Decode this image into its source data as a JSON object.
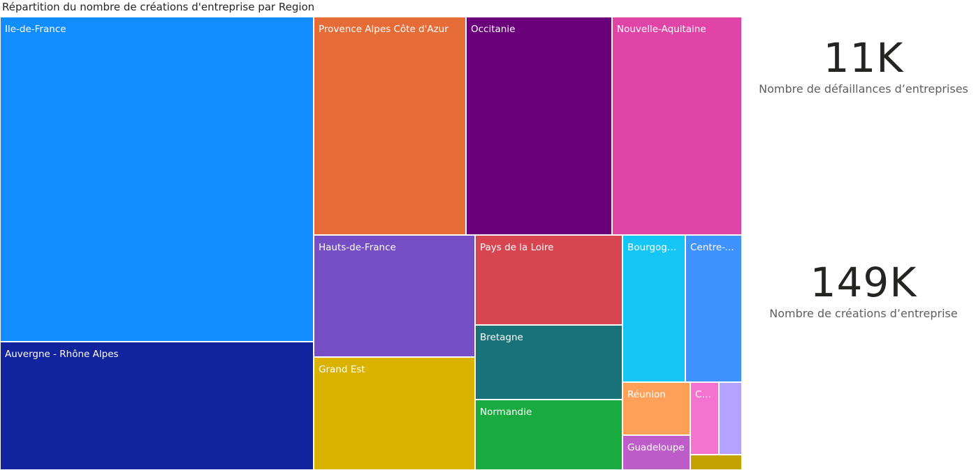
{
  "chart_data": {
    "type": "treemap",
    "title": "Répartition du nombre de créations d'entreprise par Region",
    "tiles": [
      {
        "label": "Ile-de-France",
        "color": "#118DFF"
      },
      {
        "label": "Auvergne - Rhône Alpes",
        "color": "#12239E"
      },
      {
        "label": "Provence Alpes Côte d'Azur",
        "color": "#E66C37"
      },
      {
        "label": "Occitanie",
        "color": "#6B007B"
      },
      {
        "label": "Nouvelle-Aquitaine",
        "color": "#E044A7"
      },
      {
        "label": "Hauts-de-France",
        "color": "#744EC2"
      },
      {
        "label": "Grand Est",
        "color": "#D9B300"
      },
      {
        "label": "Pays de la Loire",
        "color": "#D64550"
      },
      {
        "label": "Bretagne",
        "color": "#197278"
      },
      {
        "label": "Normandie",
        "color": "#1AAB40"
      },
      {
        "label": "Bourgogne-Franche-Comté",
        "color": "#15C6F4"
      },
      {
        "label": "Centre-Val de Loire",
        "color": "#4092FF"
      },
      {
        "label": "Réunion",
        "color": "#FFA058"
      },
      {
        "label": "Guadeloupe",
        "color": "#BE5DC9"
      },
      {
        "label": "Corse",
        "color": "#F472D0"
      },
      {
        "label": "",
        "color": "#B5A1FF"
      },
      {
        "label": "",
        "color": "#C4A200"
      }
    ]
  },
  "kpis": [
    {
      "value": "11K",
      "label": "Nombre de défaillances d’entreprises"
    },
    {
      "value": "149K",
      "label": "Nombre de créations d’entreprise"
    }
  ]
}
